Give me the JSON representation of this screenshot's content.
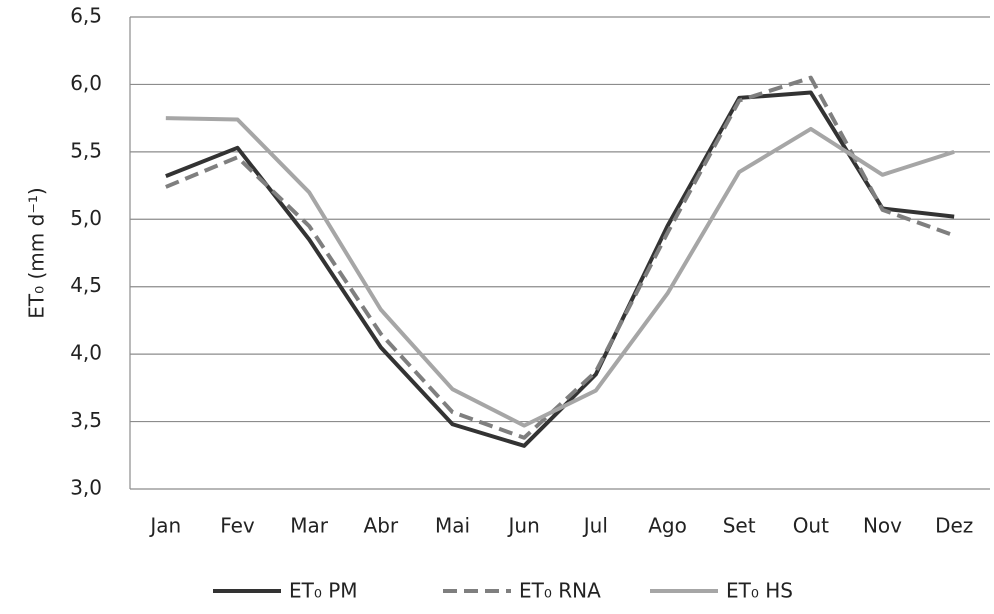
{
  "chart_data": {
    "type": "line",
    "y_label": "ET₀ (mm d⁻¹)",
    "categories": [
      "Jan",
      "Fev",
      "Mar",
      "Abr",
      "Mai",
      "Jun",
      "Jul",
      "Ago",
      "Set",
      "Out",
      "Nov",
      "Dez"
    ],
    "series": [
      {
        "name": "ET₀ PM",
        "color": "#333333",
        "dashed": false,
        "values": [
          5.32,
          5.53,
          4.85,
          4.05,
          3.48,
          3.32,
          3.85,
          4.95,
          5.9,
          5.94,
          5.08,
          5.02
        ]
      },
      {
        "name": "ET₀ RNA",
        "color": "#7f7f7f",
        "dashed": true,
        "values": [
          5.24,
          5.46,
          4.95,
          4.15,
          3.57,
          3.38,
          3.87,
          4.9,
          5.88,
          6.05,
          5.07,
          4.88
        ]
      },
      {
        "name": "ET₀ HS",
        "color": "#a6a6a6",
        "dashed": false,
        "values": [
          5.75,
          5.74,
          5.2,
          4.33,
          3.74,
          3.47,
          3.73,
          4.45,
          5.35,
          5.67,
          5.33,
          5.5
        ]
      }
    ],
    "ylim": [
      3.0,
      6.5
    ],
    "yticks": [
      {
        "value": 3.0,
        "label": "3,0"
      },
      {
        "value": 3.5,
        "label": "3,5"
      },
      {
        "value": 4.0,
        "label": "4,0"
      },
      {
        "value": 4.5,
        "label": "4,5"
      },
      {
        "value": 5.0,
        "label": "5,0"
      },
      {
        "value": 5.5,
        "label": "5,5"
      },
      {
        "value": 6.0,
        "label": "6,0"
      },
      {
        "value": 6.5,
        "label": "6,5"
      }
    ],
    "grid": true,
    "legend": "bottom"
  }
}
